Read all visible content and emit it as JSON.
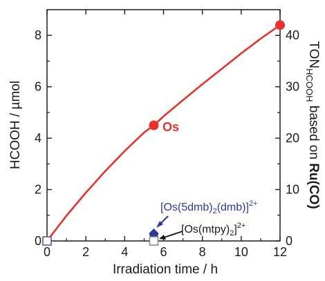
{
  "chart_data": {
    "type": "line",
    "x_axis": {
      "label": "Irradiation time / h",
      "range": [
        0,
        12
      ],
      "ticks": [
        0,
        2,
        4,
        6,
        8,
        10,
        12
      ]
    },
    "y_axis_left": {
      "label": "HCOOH / µmol",
      "range": [
        0,
        9
      ],
      "ticks": [
        0,
        2,
        4,
        6,
        8
      ]
    },
    "y_axis_right": {
      "label_parts": {
        "ton": "TON",
        "sub": "HCOOH",
        "based": " based on ",
        "ru": "Ru(CO)"
      },
      "range": [
        0,
        45
      ],
      "ticks": [
        0,
        10,
        20,
        30,
        40
      ]
    },
    "series": [
      {
        "name": "Os",
        "color": "#e8312b",
        "points": [
          [
            0,
            0
          ],
          [
            5.5,
            4.5
          ],
          [
            12,
            8.4
          ]
        ],
        "curve": [
          [
            0,
            0
          ],
          [
            1,
            0.98
          ],
          [
            2,
            1.88
          ],
          [
            3,
            2.72
          ],
          [
            4,
            3.5
          ],
          [
            5,
            4.22
          ],
          [
            5.5,
            4.5
          ],
          [
            6,
            4.85
          ],
          [
            7,
            5.48
          ],
          [
            8,
            6.1
          ],
          [
            9,
            6.7
          ],
          [
            10,
            7.3
          ],
          [
            11,
            7.87
          ],
          [
            12,
            8.4
          ]
        ]
      },
      {
        "name": "[Os(5dmb)2(dmb)]2+",
        "color": "#2b3a9a",
        "marker": "diamond",
        "points": [
          [
            5.5,
            0.3
          ]
        ]
      },
      {
        "name": "[Os(mtpy)2]2+",
        "color": "#555555",
        "marker": "open-square",
        "points": [
          [
            0,
            0
          ],
          [
            5.5,
            0
          ]
        ]
      }
    ],
    "annotations": {
      "os": "Os",
      "dmb": {
        "prefix": "[Os(5dmb)",
        "sub1": "2",
        "mid": "(dmb)]",
        "sup": "2+"
      },
      "mtpy": {
        "prefix": "[Os(mtpy)",
        "sub1": "2",
        "mid": "]",
        "sup": "2+"
      }
    }
  }
}
